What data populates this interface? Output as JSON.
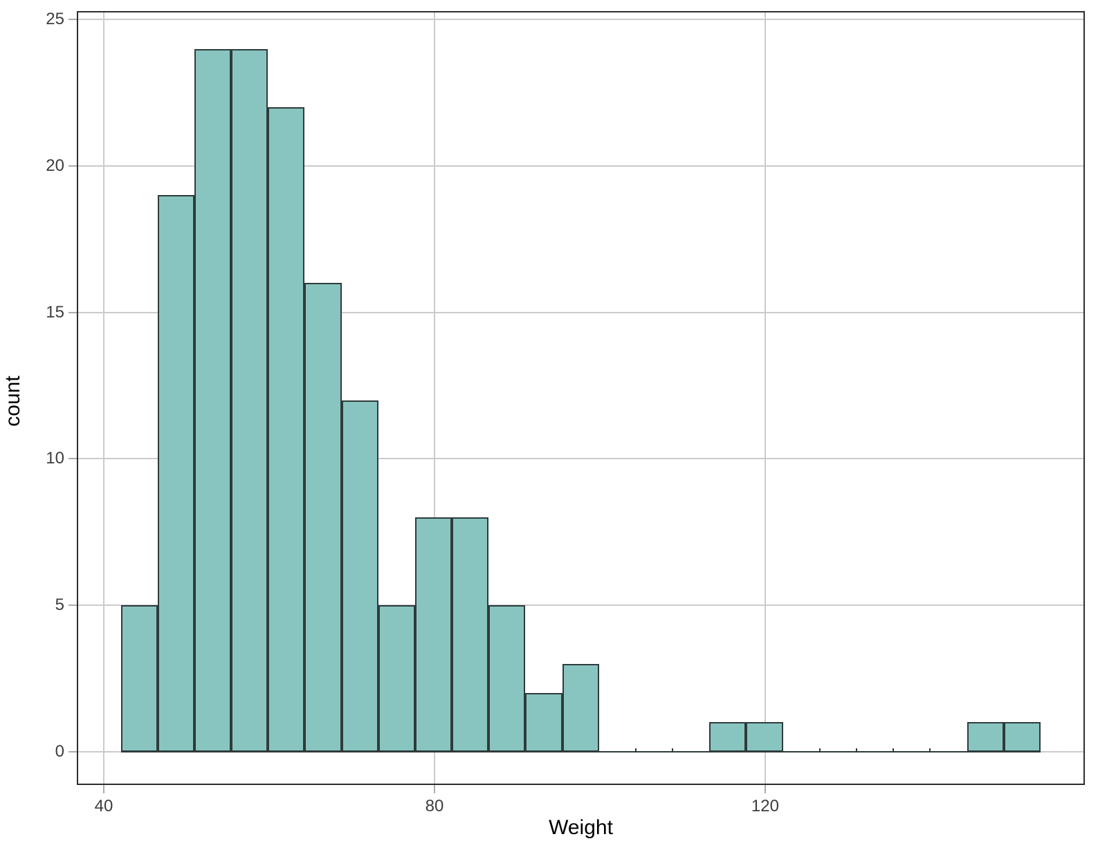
{
  "chart_data": {
    "type": "bar",
    "subtype": "histogram",
    "title": "",
    "xlabel": "Weight",
    "ylabel": "count",
    "bin_start": 42.05,
    "bin_width": 4.45,
    "bin_edges": [
      42.05,
      46.5,
      50.95,
      55.4,
      59.85,
      64.3,
      68.75,
      73.2,
      77.65,
      82.1,
      86.55,
      91.0,
      95.45,
      99.9,
      104.35,
      108.8,
      113.25,
      117.7,
      122.15,
      126.6,
      131.05,
      135.5,
      139.95,
      144.4,
      148.85,
      153.3
    ],
    "counts": [
      5,
      19,
      24,
      24,
      22,
      16,
      12,
      5,
      8,
      8,
      5,
      2,
      3,
      0,
      0,
      0,
      1,
      1,
      0,
      0,
      0,
      0,
      0,
      1,
      1
    ],
    "total_n": 157,
    "x_ticks": [
      40,
      80,
      120
    ],
    "y_ticks": [
      0,
      5,
      10,
      15,
      20,
      25
    ],
    "x_domain": [
      36.9,
      158.5
    ],
    "y_domain": [
      -1.09,
      25.24
    ],
    "grid": "major-only",
    "legend_position": "none",
    "colors": {
      "bar_fill": "#89c5c0",
      "bar_stroke": "#2e3b3b",
      "gridline": "#cbcbcb",
      "tick_mark": "#ababab",
      "tick_label": "#3d3d3d",
      "axis_title": "#000000",
      "panel_border": "#2c2c2c",
      "background": "#ffffff"
    }
  }
}
